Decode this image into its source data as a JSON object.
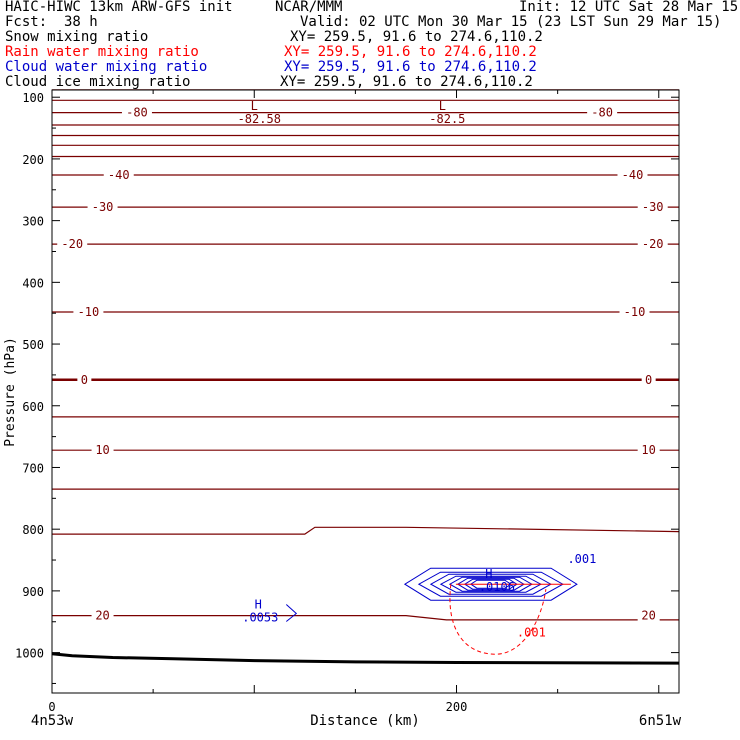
{
  "header": {
    "model": "HAIC-HIWC 13km ARW-GFS init",
    "org": "NCAR/MMM",
    "init": "Init: 12 UTC Sat 28 Mar 15",
    "fcst_label": "Fcst:",
    "fcst_value": "38 h",
    "valid": "Valid: 02 UTC Mon 30 Mar 15 (23 LST Sun 29 Mar 15)"
  },
  "fields": [
    {
      "label": "Snow mixing ratio",
      "xy": "XY= 259.5, 91.6 to 274.6,110.2",
      "color": "#000000"
    },
    {
      "label": "Rain water mixing ratio",
      "xy": "XY= 259.5, 91.6 to 274.6,110.2",
      "color": "#ff0000"
    },
    {
      "label": "Cloud water mixing ratio",
      "xy": "XY= 259.5, 91.6 to 274.6,110.2",
      "color": "#0000cc"
    },
    {
      "label": "Cloud ice mixing ratio",
      "xy": "XY= 259.5, 91.6 to 274.6,110.2",
      "color": "#000000"
    }
  ],
  "colors": {
    "temperature": "#7a0000",
    "rain": "#ff0000",
    "cloud_water": "#0000cc",
    "terrain": "#000000"
  },
  "chart_data": {
    "type": "line",
    "xlabel": "Distance (km)",
    "ylabel": "Pressure (hPa)",
    "xlim": [
      0,
      310
    ],
    "ylim": [
      1050,
      70
    ],
    "x_ticks": [
      0,
      200
    ],
    "y_ticks": [
      100,
      200,
      300,
      400,
      500,
      600,
      700,
      800,
      900,
      1000
    ],
    "endpoint_left": "4n53w",
    "endpoint_right": "6n51w",
    "isotherms": [
      {
        "name": "temperature",
        "y": [
          [
            88,
            88
          ]
        ],
        "labels": []
      },
      {
        "name": "temperature",
        "y": [
          [
            105,
            105
          ]
        ],
        "labels": []
      },
      {
        "name": "temperature",
        "y": [
          [
            125,
            125
          ]
        ],
        "labels": [
          {
            "x": 42,
            "text": "-80"
          },
          {
            "x": 272,
            "text": "-80"
          }
        ]
      },
      {
        "name": "temperature",
        "y": [
          [
            145,
            145
          ]
        ],
        "labels": []
      },
      {
        "name": "temperature",
        "y": [
          [
            162,
            162
          ]
        ],
        "labels": []
      },
      {
        "name": "temperature",
        "y": [
          [
            178,
            178
          ]
        ],
        "labels": []
      },
      {
        "name": "temperature",
        "y": [
          [
            196,
            196
          ]
        ],
        "labels": []
      },
      {
        "name": "temperature",
        "y": [
          [
            226,
            226
          ]
        ],
        "labels": [
          {
            "x": 33,
            "text": "-40"
          },
          {
            "x": 287,
            "text": "-40"
          }
        ]
      },
      {
        "name": "temperature",
        "y": [
          [
            278,
            278
          ]
        ],
        "labels": [
          {
            "x": 25,
            "text": "-30"
          },
          {
            "x": 297,
            "text": "-30"
          }
        ]
      },
      {
        "name": "temperature",
        "y": [
          [
            338,
            338
          ]
        ],
        "labels": [
          {
            "x": 10,
            "text": "-20"
          },
          {
            "x": 297,
            "text": "-20"
          }
        ]
      },
      {
        "name": "temperature",
        "y": [
          [
            448,
            448
          ]
        ],
        "labels": [
          {
            "x": 18,
            "text": "-10"
          },
          {
            "x": 288,
            "text": "-10"
          }
        ]
      },
      {
        "name": "temperature",
        "y": [
          [
            558,
            558
          ]
        ],
        "labels": [
          {
            "x": 16,
            "text": "0"
          },
          {
            "x": 295,
            "text": "0"
          }
        ],
        "bold": true
      },
      {
        "name": "temperature",
        "y": [
          [
            618,
            618
          ]
        ],
        "labels": []
      },
      {
        "name": "temperature",
        "y": [
          [
            672,
            672
          ]
        ],
        "labels": [
          {
            "x": 25,
            "text": "10"
          },
          {
            "x": 295,
            "text": "10"
          }
        ]
      },
      {
        "name": "temperature",
        "y": [
          [
            735,
            735
          ]
        ],
        "labels": []
      },
      {
        "name": "temperature",
        "y": [
          [
            808,
            808
          ],
          [
            125,
            808
          ],
          [
            130,
            797
          ],
          [
            175,
            797
          ],
          [
            310,
            804
          ]
        ],
        "labels": []
      },
      {
        "name": "temperature",
        "y": [
          [
            940,
            940
          ],
          [
            175,
            940
          ],
          [
            195,
            947
          ],
          [
            310,
            947
          ]
        ],
        "labels": [
          {
            "x": 25,
            "text": "20"
          },
          {
            "x": 295,
            "text": "20"
          }
        ]
      }
    ],
    "lows": [
      {
        "x": 100,
        "text": "L",
        "value": "-82.58"
      },
      {
        "x": 193,
        "text": "L",
        "value": "-82.5"
      }
    ],
    "highs": [
      {
        "x": 102,
        "y": 935,
        "text": "H",
        "value": ".0053"
      },
      {
        "x": 216,
        "y": 860,
        "text": "H",
        "value": ".0106"
      }
    ],
    "contour_labels": [
      {
        "x": 262,
        "y": 855,
        "text": ".001",
        "series": "cloud_water"
      },
      {
        "x": 237,
        "y": 974,
        "text": ".001",
        "series": "rain"
      }
    ],
    "terrain": [
      [
        0,
        1002
      ],
      [
        10,
        1005
      ],
      [
        30,
        1008
      ],
      [
        60,
        1010
      ],
      [
        100,
        1013
      ],
      [
        150,
        1015
      ],
      [
        200,
        1016
      ],
      [
        310,
        1017
      ]
    ]
  }
}
